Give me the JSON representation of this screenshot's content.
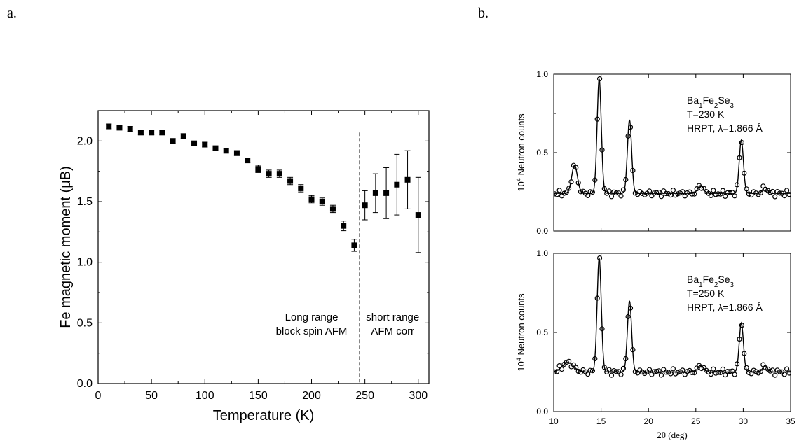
{
  "panels": {
    "a": "a.",
    "b": "b."
  },
  "chart_data": [
    {
      "type": "scatter",
      "panel": "a.",
      "xlabel": "Temperature (K)",
      "ylabel": "Fe magnetic moment (μB)",
      "xlim": [
        0,
        310
      ],
      "ylim": [
        0,
        2.25
      ],
      "xticks": [
        "0",
        "50",
        "100",
        "150",
        "200",
        "250",
        "300"
      ],
      "yticks": [
        "0.0",
        "0.5",
        "1.0",
        "1.5",
        "2.0"
      ],
      "marker": "filled-square",
      "color": "#000000",
      "x": [
        10,
        20,
        30,
        40,
        50,
        60,
        70,
        80,
        90,
        100,
        110,
        120,
        130,
        140,
        150,
        160,
        170,
        180,
        190,
        200,
        210,
        220,
        230,
        240,
        250,
        260,
        270,
        280,
        290,
        300
      ],
      "y": [
        2.12,
        2.11,
        2.1,
        2.07,
        2.07,
        2.07,
        2.0,
        2.04,
        1.98,
        1.97,
        1.94,
        1.92,
        1.9,
        1.84,
        1.77,
        1.73,
        1.73,
        1.67,
        1.61,
        1.52,
        1.5,
        1.44,
        1.3,
        1.14,
        1.47,
        1.57,
        1.57,
        1.64,
        1.68,
        1.39
      ],
      "yerr": [
        0.02,
        0.02,
        0.02,
        0.02,
        0.02,
        0.02,
        0.02,
        0.02,
        0.02,
        0.02,
        0.02,
        0.02,
        0.02,
        0.02,
        0.03,
        0.03,
        0.03,
        0.03,
        0.03,
        0.03,
        0.03,
        0.03,
        0.04,
        0.05,
        0.12,
        0.16,
        0.21,
        0.25,
        0.24,
        0.31
      ],
      "vline_x": 245,
      "annotations": [
        {
          "lines": [
            "Long range",
            "block spin AFM"
          ],
          "x": 200,
          "y": 0.52
        },
        {
          "lines": [
            "short range",
            "AFM corr"
          ],
          "x": 276,
          "y": 0.52
        }
      ]
    },
    {
      "type": "line",
      "panel": "b.",
      "xlim": [
        10,
        35
      ],
      "ylim": [
        0,
        1.0
      ],
      "yticks": [
        "0.0",
        "0.5",
        "1.0"
      ],
      "ylabel": "10<sup>4</sup> Neutron counts",
      "legend_lines": [
        "Ba<sub>1</sub>Fe<sub>2</sub>Se<sub>3</sub>",
        "T=230 K",
        "HRPT, λ=1.866 Å"
      ],
      "baseline": 0.24,
      "peaks": [
        [
          12.2,
          0.18,
          0.3
        ],
        [
          14.8,
          0.73,
          0.22
        ],
        [
          18.0,
          0.47,
          0.22
        ],
        [
          25.5,
          0.05,
          0.3
        ],
        [
          29.8,
          0.34,
          0.22
        ],
        [
          32.3,
          0.04,
          0.25
        ]
      ]
    },
    {
      "type": "line",
      "panel": "b.",
      "xlim": [
        10,
        35
      ],
      "ylim": [
        0,
        1.0
      ],
      "xticks": [
        "10",
        "15",
        "20",
        "25",
        "30",
        "35"
      ],
      "yticks": [
        "0.0",
        "0.5",
        "1.0"
      ],
      "xlabel": "2θ (deg)",
      "ylabel": "10<sup>4</sup> Neutron counts",
      "legend_lines": [
        "Ba<sub>1</sub>Fe<sub>2</sub>Se<sub>3</sub>",
        "T=250 K",
        "HRPT, λ=1.866 Å"
      ],
      "baseline": 0.25,
      "peaks": [
        [
          11.5,
          0.06,
          0.6
        ],
        [
          14.8,
          0.72,
          0.22
        ],
        [
          18.0,
          0.45,
          0.22
        ],
        [
          25.5,
          0.04,
          0.3
        ],
        [
          29.8,
          0.31,
          0.22
        ],
        [
          32.3,
          0.04,
          0.25
        ]
      ]
    }
  ]
}
